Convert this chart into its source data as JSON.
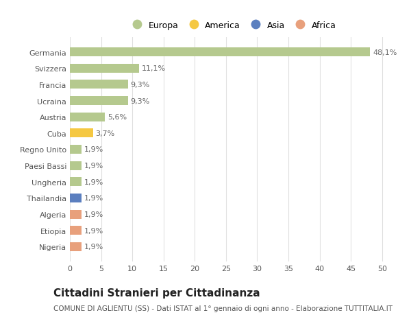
{
  "countries": [
    "Germania",
    "Svizzera",
    "Francia",
    "Ucraina",
    "Austria",
    "Cuba",
    "Regno Unito",
    "Paesi Bassi",
    "Ungheria",
    "Thailandia",
    "Algeria",
    "Etiopia",
    "Nigeria"
  ],
  "values": [
    48.1,
    11.1,
    9.3,
    9.3,
    5.6,
    3.7,
    1.9,
    1.9,
    1.9,
    1.9,
    1.9,
    1.9,
    1.9
  ],
  "labels": [
    "48,1%",
    "11,1%",
    "9,3%",
    "9,3%",
    "5,6%",
    "3,7%",
    "1,9%",
    "1,9%",
    "1,9%",
    "1,9%",
    "1,9%",
    "1,9%",
    "1,9%"
  ],
  "categories": [
    "Europa",
    "Europa",
    "Europa",
    "Europa",
    "Europa",
    "America",
    "Europa",
    "Europa",
    "Europa",
    "Asia",
    "Africa",
    "Africa",
    "Africa"
  ],
  "colors": {
    "Europa": "#b5c98e",
    "America": "#f5c842",
    "Asia": "#5b7fbf",
    "Africa": "#e8a07c"
  },
  "legend_order": [
    "Europa",
    "America",
    "Asia",
    "Africa"
  ],
  "legend_colors": [
    "#b5c98e",
    "#f5c842",
    "#5b7fbf",
    "#e8a07c"
  ],
  "xlim": [
    0,
    52
  ],
  "xticks": [
    0,
    5,
    10,
    15,
    20,
    25,
    30,
    35,
    40,
    45,
    50
  ],
  "title": "Cittadini Stranieri per Cittadinanza",
  "subtitle": "COMUNE DI AGLIENTU (SS) - Dati ISTAT al 1° gennaio di ogni anno - Elaborazione TUTTITALIA.IT",
  "bg_color": "#ffffff",
  "grid_color": "#e0e0e0",
  "bar_height": 0.55,
  "label_fontsize": 8,
  "title_fontsize": 11,
  "subtitle_fontsize": 7.5,
  "tick_fontsize": 8,
  "legend_fontsize": 9
}
